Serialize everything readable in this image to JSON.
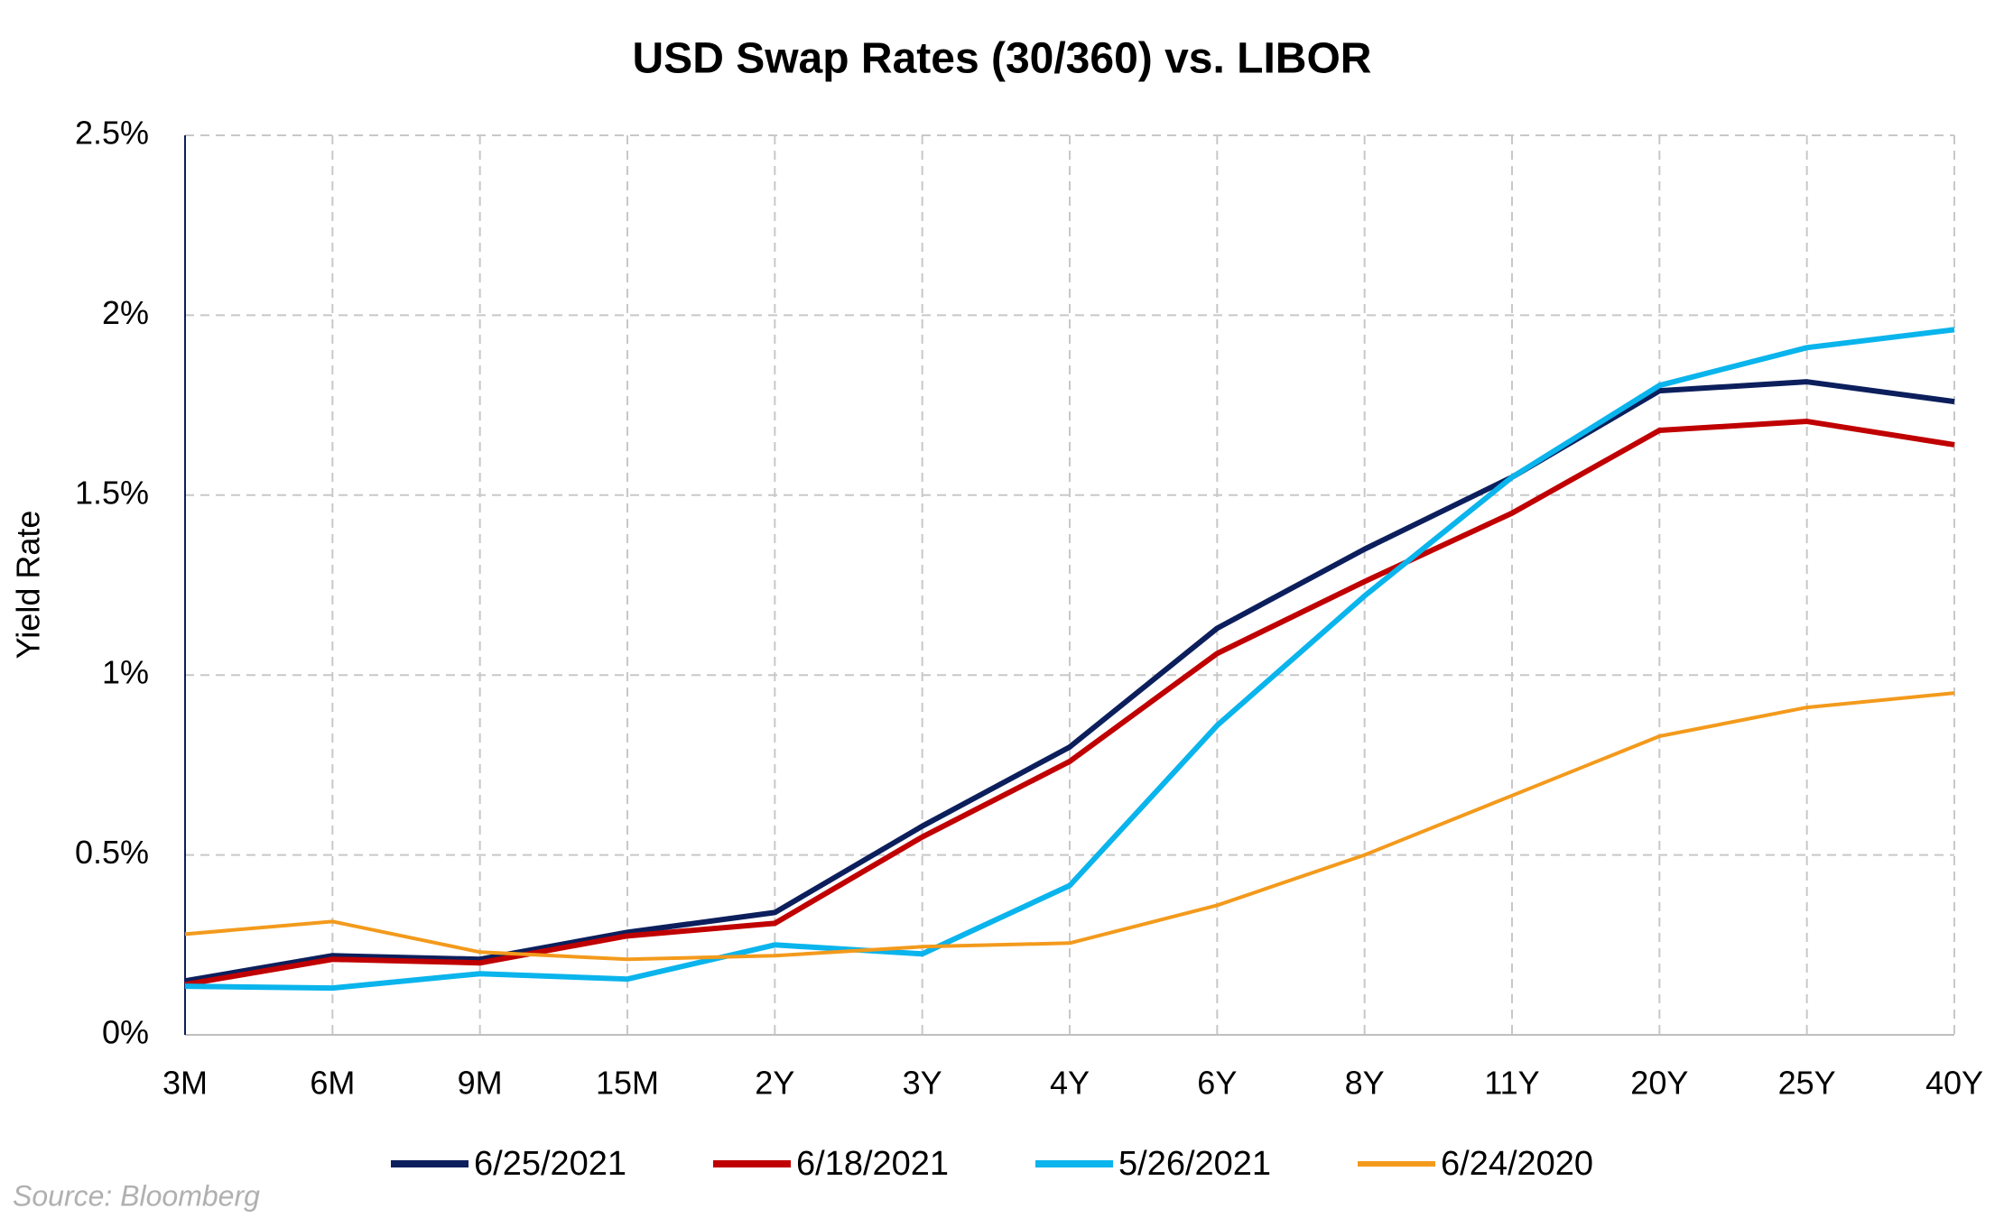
{
  "chart_data": {
    "type": "line",
    "title": "USD Swap Rates (30/360) vs. LIBOR",
    "y_label": "Yield Rate",
    "source": "Source: Bloomberg",
    "categories": [
      "3M",
      "6M",
      "9M",
      "15M",
      "2Y",
      "3Y",
      "4Y",
      "6Y",
      "8Y",
      "11Y",
      "20Y",
      "25Y",
      "40Y"
    ],
    "series": [
      {
        "name": "6/25/2021",
        "color": "#0c1f5c",
        "linewidth": 6,
        "values": [
          0.15,
          0.22,
          0.21,
          0.285,
          0.34,
          0.58,
          0.8,
          1.13,
          1.35,
          1.55,
          1.79,
          1.815,
          1.76
        ]
      },
      {
        "name": "6/18/2021",
        "color": "#c00000",
        "linewidth": 6,
        "values": [
          0.14,
          0.21,
          0.2,
          0.275,
          0.31,
          0.55,
          0.76,
          1.06,
          1.26,
          1.45,
          1.68,
          1.705,
          1.64
        ]
      },
      {
        "name": "5/26/2021",
        "color": "#0ab4ec",
        "linewidth": 6,
        "values": [
          0.135,
          0.13,
          0.17,
          0.155,
          0.25,
          0.225,
          0.415,
          0.86,
          1.22,
          1.55,
          1.805,
          1.91,
          1.96
        ]
      },
      {
        "name": "6/24/2020",
        "color": "#f39a1c",
        "linewidth": 4,
        "values": [
          0.28,
          0.315,
          0.23,
          0.21,
          0.22,
          0.245,
          0.255,
          0.36,
          0.5,
          0.665,
          0.83,
          0.91,
          0.95
        ]
      }
    ],
    "ylim": [
      0,
      2.5
    ],
    "yticks": [
      {
        "value": 0,
        "label": "0%"
      },
      {
        "value": 0.5,
        "label": "0.5%"
      },
      {
        "value": 1,
        "label": "1%"
      },
      {
        "value": 1.5,
        "label": "1.5%"
      },
      {
        "value": 2,
        "label": "2%"
      },
      {
        "value": 2.5,
        "label": "2.5%"
      }
    ],
    "grid": true,
    "legend": "bottom"
  }
}
